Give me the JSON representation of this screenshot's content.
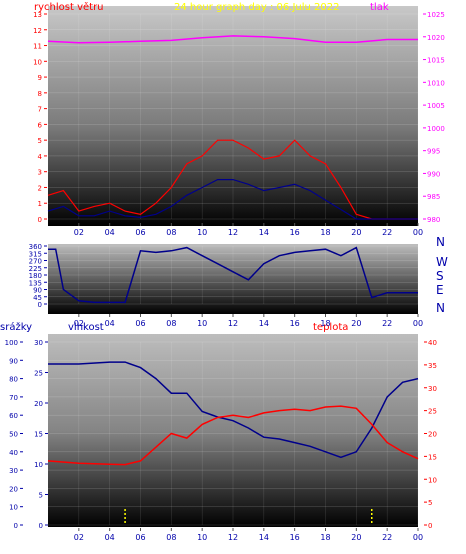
{
  "title": "24 hour graph day : 06.Julu 2022",
  "top_left_label": "rychlost větru",
  "top_right_label": "tlak",
  "dir_labels": [
    "N",
    "W",
    "S",
    "E",
    "N"
  ],
  "bottom_left_label": "srážky",
  "bottom_mid_label": "vlhkost",
  "bottom_right_label": "teplota",
  "colors": {
    "title": "#ffff00",
    "wind": "#ff0000",
    "gust": "#ff0000",
    "pressure": "#ff00ff",
    "direction": "#00008b",
    "humidity": "#00008b",
    "temperature": "#ff0000",
    "rain_marker": "#ffff00",
    "axis": "#0000aa"
  },
  "chart_data": [
    {
      "type": "line",
      "name": "wind_and_pressure",
      "x_ticks": [
        "02",
        "04",
        "06",
        "08",
        "10",
        "12",
        "14",
        "16",
        "18",
        "20",
        "22",
        "00"
      ],
      "y_left_ticks": [
        0,
        1,
        2,
        3,
        4,
        5,
        6,
        7,
        8,
        9,
        10,
        11,
        12,
        13
      ],
      "y_left_range": [
        0,
        13
      ],
      "y_right_ticks": [
        980,
        985,
        990,
        995,
        1000,
        1005,
        1010,
        1015,
        1020,
        1025
      ],
      "y_right_range": [
        980,
        1025
      ],
      "series": [
        {
          "name": "tlak",
          "axis": "right",
          "x": [
            0,
            2,
            4,
            6,
            8,
            10,
            12,
            14,
            16,
            18,
            20,
            22,
            24
          ],
          "values": [
            1019,
            1018.7,
            1018.8,
            1019.0,
            1019.2,
            1019.8,
            1020.2,
            1020.0,
            1019.6,
            1018.8,
            1018.8,
            1019.4,
            1019.4
          ]
        },
        {
          "axis": "left",
          "x": [
            0,
            1,
            2,
            3,
            4,
            5,
            6,
            7,
            8,
            9,
            10,
            11,
            12,
            13,
            14,
            15,
            16,
            17,
            18,
            19,
            20,
            21,
            22,
            23,
            24
          ],
          "values": [
            1.5,
            1.8,
            0.5,
            0.8,
            1.0,
            0.5,
            0.3,
            1.0,
            2.0,
            3.5,
            4.0,
            5.0,
            5.0,
            4.5,
            3.8,
            4.0,
            5.0,
            4.0,
            3.5,
            2.0,
            0.3,
            0,
            0,
            0,
            0
          ]
        },
        {
          "axis": "left",
          "x": [
            0,
            1,
            2,
            3,
            4,
            5,
            6,
            7,
            8,
            9,
            10,
            11,
            12,
            13,
            14,
            15,
            16,
            17,
            18,
            19,
            20,
            21,
            22,
            23,
            24
          ],
          "values": [
            0.5,
            0.8,
            0.2,
            0.2,
            0.5,
            0.2,
            0.1,
            0.3,
            0.8,
            1.5,
            2.0,
            2.5,
            2.5,
            2.2,
            1.8,
            2.0,
            2.2,
            1.8,
            1.2,
            0.6,
            0,
            0,
            0,
            0,
            0
          ]
        }
      ]
    },
    {
      "type": "line",
      "name": "wind_direction",
      "x_ticks": [
        "02",
        "04",
        "06",
        "08",
        "10",
        "12",
        "14",
        "16",
        "18",
        "20",
        "22",
        "00"
      ],
      "y_ticks": [
        0,
        45,
        90,
        135,
        180,
        225,
        270,
        315,
        360
      ],
      "y_range": [
        0,
        360
      ],
      "series": [
        {
          "axis": "left",
          "x": [
            0,
            0.5,
            1,
            2,
            3,
            4,
            5,
            6,
            7,
            8,
            9,
            10,
            11,
            12,
            13,
            14,
            15,
            16,
            17,
            18,
            19,
            20,
            21,
            22,
            23,
            24
          ],
          "values": [
            340,
            340,
            90,
            20,
            10,
            10,
            10,
            330,
            320,
            330,
            350,
            300,
            250,
            200,
            150,
            250,
            300,
            320,
            330,
            340,
            300,
            350,
            40,
            70,
            70,
            70
          ]
        }
      ]
    },
    {
      "type": "line",
      "name": "humidity_temperature_rain",
      "x_ticks": [
        "02",
        "04",
        "06",
        "08",
        "10",
        "12",
        "14",
        "16",
        "18",
        "20",
        "22",
        "00"
      ],
      "y_left_ticks": [
        0,
        10,
        20,
        30,
        40,
        50,
        60,
        70,
        80,
        90,
        100
      ],
      "y_left_range": [
        0,
        100
      ],
      "y_mid_ticks": [
        0,
        5,
        10,
        15,
        20,
        25,
        30
      ],
      "y_mid_range": [
        0,
        30
      ],
      "y_right_ticks": [
        0,
        5,
        10,
        15,
        20,
        25,
        30,
        35,
        40
      ],
      "y_right_range": [
        0,
        40
      ],
      "series": [
        {
          "name": "vlhkost",
          "axis": "left",
          "x": [
            0,
            2,
            4,
            5,
            6,
            7,
            8,
            9,
            10,
            11,
            12,
            13,
            14,
            15,
            16,
            17,
            18,
            19,
            20,
            21,
            22,
            23,
            24
          ],
          "values": [
            88,
            88,
            89,
            89,
            86,
            80,
            72,
            72,
            62,
            59,
            57,
            53,
            48,
            47,
            45,
            43,
            40,
            37,
            40,
            53,
            70,
            78,
            80
          ]
        },
        {
          "name": "teplota",
          "axis": "right",
          "x": [
            0,
            2,
            4,
            5,
            6,
            7,
            8,
            9,
            10,
            11,
            12,
            13,
            14,
            15,
            16,
            17,
            18,
            19,
            20,
            21,
            22,
            23,
            24
          ],
          "values": [
            14,
            13.5,
            13.3,
            13.2,
            14.0,
            17,
            20,
            19,
            22,
            23.5,
            24,
            23.5,
            24.5,
            25,
            25.3,
            25,
            25.8,
            26,
            25.5,
            22,
            18,
            16,
            14.5
          ]
        },
        {
          "name": "srážky",
          "axis": "left",
          "x": [
            5,
            21
          ],
          "values": [
            0,
            0
          ]
        }
      ]
    }
  ]
}
